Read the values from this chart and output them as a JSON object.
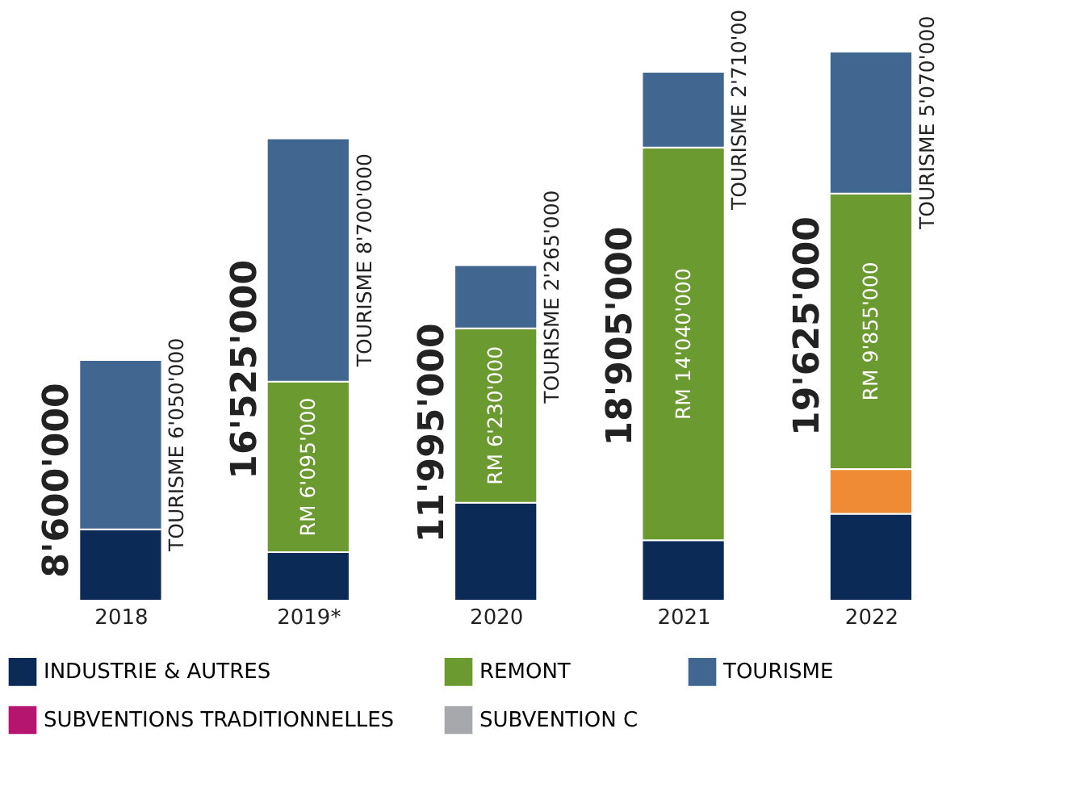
{
  "chart_data": {
    "type": "bar",
    "stacked": true,
    "categories": [
      "2018",
      "2019*",
      "2020",
      "2021",
      "2022"
    ],
    "series": [
      {
        "name": "INDUSTRIE & AUTRES",
        "color": "#0b2a55",
        "values": [
          2550000,
          1730000,
          3500000,
          2155000,
          3100000
        ]
      },
      {
        "color": "#ef8a35",
        "values": [
          null,
          null,
          null,
          null,
          1600000
        ]
      },
      {
        "name": "REMONT",
        "color": "#6a9a30",
        "values": [
          null,
          6095000,
          6230000,
          14040000,
          9855000
        ],
        "value_labels": [
          null,
          "RM 6'095'000",
          "RM 6'230'000",
          "RM 14'040'000",
          "RM 9'855'000"
        ]
      },
      {
        "name": "TOURISME",
        "color": "#41668f",
        "values": [
          6050000,
          8700000,
          2265000,
          2710000,
          5070000
        ],
        "value_labels": [
          "TOURISME 6'050'000",
          "TOURISME 8'700'000",
          "TOURISME 2'265'000",
          "TOURISME 2'710'00",
          "TOURISME 5'070'000"
        ]
      },
      {
        "name": "SUBVENTIONS TRADITIONNELLES",
        "color": "#b5146f",
        "values": [
          null,
          null,
          null,
          null,
          null
        ]
      },
      {
        "name": "SUBVENTION C",
        "color": "#a7a8ac",
        "values": [
          null,
          null,
          null,
          null,
          null
        ]
      }
    ],
    "totals": [
      "8'600'000",
      "16'525'000",
      "11'995'000",
      "18'905'000",
      "19'625'000"
    ],
    "legend": "bottom"
  }
}
